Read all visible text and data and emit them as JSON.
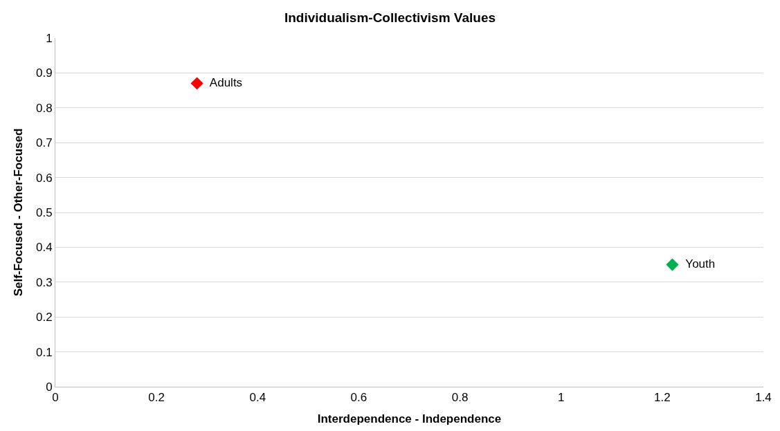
{
  "chart_data": {
    "type": "scatter",
    "title": "Individualism-Collectivism Values",
    "xlabel": "Interdependence - Independence",
    "ylabel": "Self-Focused - Other-Focused",
    "series": [
      {
        "name": "Adults",
        "color": "#ff0000",
        "x": [
          0.28
        ],
        "values": [
          0.87
        ]
      },
      {
        "name": "Youth",
        "color": "#00b050",
        "x": [
          1.22
        ],
        "values": [
          0.35
        ]
      }
    ],
    "xlim": [
      0,
      1.4
    ],
    "xticks": [
      0,
      0.2,
      0.4,
      0.6,
      0.8,
      1,
      1.2,
      1.4
    ],
    "ylim": [
      0,
      1
    ],
    "yticks": [
      0,
      0.1,
      0.2,
      0.3,
      0.4,
      0.5,
      0.6,
      0.7,
      0.8,
      0.9,
      1
    ],
    "grid": "y",
    "marker": "diamond",
    "legend": false
  }
}
